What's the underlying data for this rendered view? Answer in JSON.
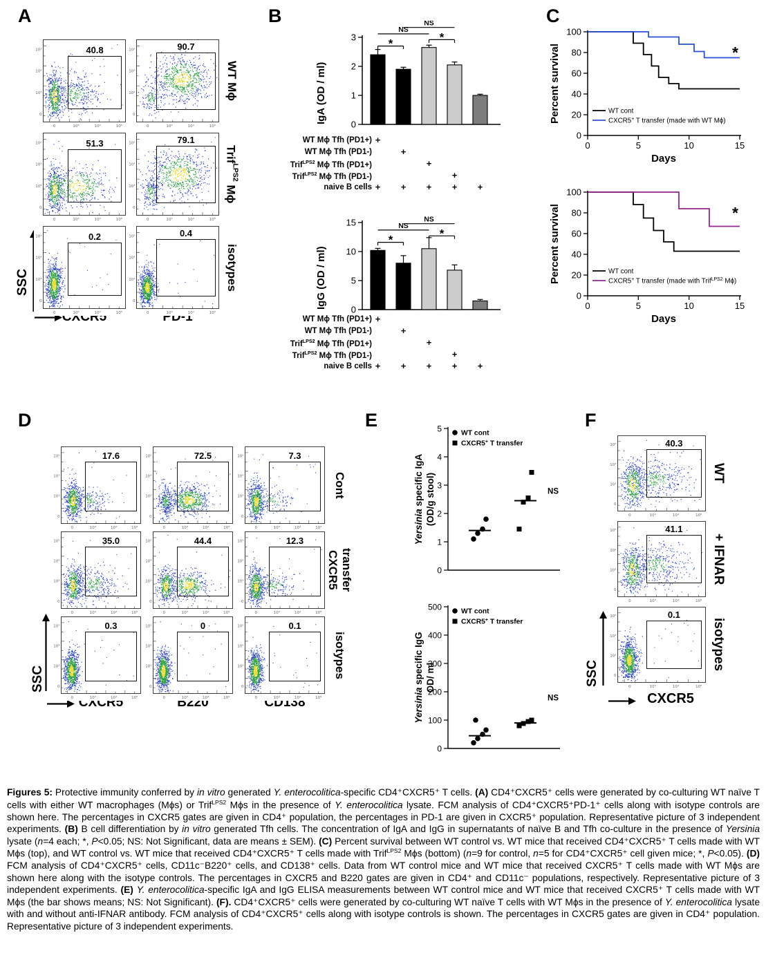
{
  "panels": {
    "A": {
      "label": "A",
      "y_axis": "SSC",
      "cols": [
        "CXCR5",
        "PD-1"
      ],
      "rows": [
        {
          "label": [
            {
              "t": "WT Mϕ"
            }
          ]
        },
        {
          "label": [
            {
              "t": "Trif"
            },
            {
              "sup": true,
              "t": "LPS2"
            },
            {
              "t": " Mϕ"
            }
          ]
        },
        {
          "label": [
            {
              "t": "isotypes"
            }
          ]
        }
      ],
      "plots": [
        {
          "pct": "40.8",
          "pop": "spread",
          "gate": "r"
        },
        {
          "pct": "90.7",
          "pop": "pos",
          "gate": "w"
        },
        {
          "pct": "51.3",
          "pop": "spread2",
          "gate": "r"
        },
        {
          "pct": "79.1",
          "pop": "pos2",
          "gate": "w"
        },
        {
          "pct": "0.2",
          "pop": "neg",
          "gate": "r"
        },
        {
          "pct": "0.4",
          "pop": "neg2",
          "gate": "w"
        }
      ]
    },
    "B": {
      "label": "B",
      "charts": [
        {
          "y_label": "IgA (OD / ml)",
          "ymax": 3,
          "yticks": [
            0,
            1,
            2,
            3
          ],
          "values": [
            2.4,
            1.9,
            2.65,
            2.05,
            1.0
          ],
          "errors": [
            0.18,
            0.07,
            0.08,
            0.1,
            0.04
          ],
          "colors": [
            "#000000",
            "#000000",
            "#cccccc",
            "#cccccc",
            "#7d7d7d"
          ],
          "sig": [
            {
              "label": "*",
              "a": 0,
              "b": 1,
              "y": 2.7
            },
            {
              "label": "*",
              "a": 2,
              "b": 3,
              "y": 2.92
            },
            {
              "label": "NS",
              "a": 0,
              "b": 2,
              "y": 3.12
            },
            {
              "label": "NS",
              "a": 1,
              "b": 3,
              "y": 3.34
            }
          ]
        },
        {
          "y_label": "IgG (OD / ml)",
          "ymax": 15,
          "yticks": [
            0,
            5,
            10,
            15
          ],
          "values": [
            10.2,
            8.0,
            10.5,
            6.8,
            1.5
          ],
          "errors": [
            0.35,
            1.3,
            1.9,
            0.9,
            0.25
          ],
          "colors": [
            "#000000",
            "#000000",
            "#cccccc",
            "#cccccc",
            "#7d7d7d"
          ],
          "sig": [
            {
              "label": "*",
              "a": 0,
              "b": 1,
              "y": 11.6
            },
            {
              "label": "*",
              "a": 2,
              "b": 3,
              "y": 12.7
            },
            {
              "label": "NS",
              "a": 0,
              "b": 2,
              "y": 13.7
            },
            {
              "label": "NS",
              "a": 1,
              "b": 3,
              "y": 14.8
            }
          ]
        }
      ],
      "conditions": [
        [
          {
            "t": "WT Mϕ Tfh (PD1+)"
          }
        ],
        [
          {
            "t": "WT Mϕ Tfh (PD1-)"
          }
        ],
        [
          {
            "t": "Trif"
          },
          {
            "sup": true,
            "t": "LPS2"
          },
          {
            "t": " Mϕ Tfh (PD1+)"
          }
        ],
        [
          {
            "t": "Trif"
          },
          {
            "sup": true,
            "t": "LPS2"
          },
          {
            "t": " Mϕ Tfh (PD1-)"
          }
        ],
        [
          {
            "t": "naive B cells"
          }
        ]
      ],
      "matrix": [
        [
          1,
          0,
          0,
          0,
          0
        ],
        [
          0,
          1,
          0,
          0,
          0
        ],
        [
          0,
          0,
          1,
          0,
          0
        ],
        [
          0,
          0,
          0,
          1,
          0
        ],
        [
          1,
          1,
          1,
          1,
          1
        ]
      ]
    },
    "C": {
      "label": "C",
      "charts": [
        {
          "y_label": "Percent survival",
          "x_label": "Days",
          "xmax": 15,
          "xticks": [
            0,
            5,
            10,
            15
          ],
          "yticks": [
            0,
            20,
            40,
            60,
            80,
            100
          ],
          "annotation": "*",
          "series": [
            {
              "name": [
                {
                  "t": "WT cont"
                }
              ],
              "color": "#000000",
              "drops": [
                [
                  4.5,
                  89
                ],
                [
                  5.5,
                  78
                ],
                [
                  6.3,
                  67
                ],
                [
                  7.0,
                  56
                ],
                [
                  8.0,
                  50
                ],
                [
                  9.0,
                  45
                ]
              ]
            },
            {
              "name": [
                {
                  "t": "CXCR5"
                },
                {
                  "sup": true,
                  "t": "+"
                },
                {
                  "t": " T transfer (made with WT Mϕ)"
                }
              ],
              "color": "#2b4fd8",
              "drops": [
                [
                  6.0,
                  95
                ],
                [
                  9.0,
                  88
                ],
                [
                  10.5,
                  81
                ],
                [
                  11.5,
                  75
                ]
              ]
            }
          ]
        },
        {
          "y_label": "Percent survival",
          "x_label": "Days",
          "xmax": 15,
          "xticks": [
            0,
            5,
            10,
            15
          ],
          "yticks": [
            0,
            20,
            40,
            60,
            80,
            100
          ],
          "annotation": "*",
          "series": [
            {
              "name": [
                {
                  "t": "WT cont"
                }
              ],
              "color": "#000000",
              "drops": [
                [
                  4.5,
                  88
                ],
                [
                  5.5,
                  75
                ],
                [
                  6.5,
                  63
                ],
                [
                  7.5,
                  52
                ],
                [
                  8.5,
                  43
                ]
              ]
            },
            {
              "name": [
                {
                  "t": "CXCR5"
                },
                {
                  "sup": true,
                  "t": "+"
                },
                {
                  "t": " T transfer (made with Trif"
                },
                {
                  "sup": true,
                  "t": "LPS2"
                },
                {
                  "t": " Mϕ)"
                }
              ],
              "color": "#93278f",
              "drops": [
                [
                  9.0,
                  84
                ],
                [
                  12.0,
                  67
                ]
              ]
            }
          ]
        }
      ]
    },
    "D": {
      "label": "D",
      "y_axis": "SSC",
      "cols": [
        "CXCR5",
        "B220",
        "CD138"
      ],
      "rows": [
        {
          "label_lines": [
            [
              {
                "t": "Cont"
              }
            ]
          ]
        },
        {
          "label_lines": [
            [
              {
                "t": "CXCR5"
              }
            ],
            [
              {
                "t": "transfer"
              }
            ]
          ]
        },
        {
          "label_lines": [
            [
              {
                "t": "isotypes"
              }
            ]
          ]
        }
      ],
      "plots": [
        {
          "pct": "17.6",
          "pop": "d17",
          "gate": "r"
        },
        {
          "pct": "72.5",
          "pop": "two",
          "gate": "r"
        },
        {
          "pct": "7.3",
          "pop": "low",
          "gate": "r"
        },
        {
          "pct": "35.0",
          "pop": "mid",
          "gate": "r"
        },
        {
          "pct": "44.4",
          "pop": "two2",
          "gate": "r"
        },
        {
          "pct": "12.3",
          "pop": "low2",
          "gate": "r"
        },
        {
          "pct": "0.3",
          "pop": "neg",
          "gate": "r"
        },
        {
          "pct": "0",
          "pop": "neg",
          "gate": "r"
        },
        {
          "pct": "0.1",
          "pop": "neg",
          "gate": "r"
        }
      ]
    },
    "E": {
      "label": "E",
      "charts": [
        {
          "y_label_lines": [
            [
              {
                "i": true,
                "t": "Yersinia"
              },
              {
                "t": " specific IgA"
              }
            ],
            [
              {
                "t": "(OD/g stool)"
              }
            ]
          ],
          "ymax": 5,
          "yticks": [
            0,
            1,
            2,
            3,
            4,
            5
          ],
          "legend": [
            {
              "marker": "circle",
              "name": [
                {
                  "t": "WT cont"
                }
              ]
            },
            {
              "marker": "square",
              "name": [
                {
                  "t": "CXCR5"
                },
                {
                  "sup": true,
                  "t": "+"
                },
                {
                  "t": " T transfer"
                }
              ]
            }
          ],
          "groups": [
            {
              "marker": "circle",
              "values": [
                1.1,
                1.3,
                1.45,
                1.8
              ],
              "mean": 1.4
            },
            {
              "marker": "square",
              "values": [
                1.45,
                2.4,
                2.55,
                3.45
              ],
              "mean": 2.45
            }
          ],
          "ns_label": "NS",
          "ns_at": 2.7
        },
        {
          "y_label_lines": [
            [
              {
                "i": true,
                "t": "Yersinia"
              },
              {
                "t": " specific IgG"
              }
            ],
            [
              {
                "t": "OD/ ml"
              }
            ]
          ],
          "ymax": 500,
          "yticks": [
            0,
            100,
            200,
            300,
            400,
            500
          ],
          "legend": [
            {
              "marker": "circle",
              "name": [
                {
                  "t": "WT cont"
                }
              ]
            },
            {
              "marker": "square",
              "name": [
                {
                  "t": "CXCR5"
                },
                {
                  "sup": true,
                  "t": "+"
                },
                {
                  "t": " T transfer"
                }
              ]
            }
          ],
          "groups": [
            {
              "marker": "circle",
              "values": [
                20,
                35,
                50,
                65,
                100
              ],
              "mean": 45
            },
            {
              "marker": "square",
              "values": [
                80,
                88,
                95,
                100
              ],
              "mean": 90
            }
          ],
          "ns_label": "NS",
          "ns_at": 170
        }
      ]
    },
    "F": {
      "label": "F",
      "y_axis": "SSC",
      "x_axis": "CXCR5",
      "rows": [
        {
          "label": [
            {
              "t": "WT"
            }
          ]
        },
        {
          "label": [
            {
              "t": "+ IFNAR"
            }
          ]
        },
        {
          "label": [
            {
              "t": "isotypes"
            }
          ]
        }
      ],
      "plots": [
        {
          "pct": "40.3",
          "pop": "big",
          "gate": "f"
        },
        {
          "pct": "41.1",
          "pop": "big",
          "gate": "f"
        },
        {
          "pct": "0.1",
          "pop": "neg",
          "gate": "f"
        }
      ]
    }
  },
  "caption": [
    {
      "b": true,
      "t": "Figures 5:"
    },
    {
      "t": " Protective immunity conferred by "
    },
    {
      "i": true,
      "t": "in vitro"
    },
    {
      "t": " generated "
    },
    {
      "i": true,
      "t": "Y. enterocolitica"
    },
    {
      "t": "-specific CD4⁺CXCR5⁺ T cells. "
    },
    {
      "b": true,
      "t": "(A)"
    },
    {
      "t": " CD4⁺CXCR5⁺ cells were generated by co-culturing WT naïve T cells with either WT macrophages (Mϕs) or Trif"
    },
    {
      "sup": true,
      "t": "LPS2"
    },
    {
      "t": " Mϕs in the presence of "
    },
    {
      "i": true,
      "t": "Y. enterocolitica"
    },
    {
      "t": " lysate. FCM analysis of CD4⁺CXCR5⁺PD-1⁺ cells along with isotype controls are shown here. The percentages in CXCR5 gates are given in CD4⁺ population, the percentages in PD-1 are given in CXCR5⁺ population. Representative picture of 3 independent experiments. "
    },
    {
      "b": true,
      "t": "(B)"
    },
    {
      "t": " B cell differentiation by "
    },
    {
      "i": true,
      "t": "in vitro"
    },
    {
      "t": " generated Tfh cells. The concentration of IgA and IgG in supernatants of naïve B and Tfh co-culture in the presence of "
    },
    {
      "i": true,
      "t": "Yersinia"
    },
    {
      "t": " lysate ("
    },
    {
      "i": true,
      "t": "n"
    },
    {
      "t": "=4 each; *, "
    },
    {
      "i": true,
      "t": "P"
    },
    {
      "t": "<0.05; NS: Not Significant, data are means ± SEM). "
    },
    {
      "b": true,
      "t": "(C)"
    },
    {
      "t": " Percent survival between WT control vs. WT mice that received CD4⁺CXCR5⁺ T cells made with WT Mϕs (top), and WT control vs. WT mice that received CD4⁺CXCR5⁺ T cells made with Trif"
    },
    {
      "sup": true,
      "t": "LPS2"
    },
    {
      "t": " Mϕs (bottom) ("
    },
    {
      "i": true,
      "t": "n"
    },
    {
      "t": "=9 for control, "
    },
    {
      "i": true,
      "t": "n"
    },
    {
      "t": "=5 for CD4⁺CXCR5⁺ cell given mice; *, "
    },
    {
      "i": true,
      "t": "P"
    },
    {
      "t": "<0.05). "
    },
    {
      "b": true,
      "t": "(D)"
    },
    {
      "t": " FCM analysis of CD4⁺CXCR5⁺ cells, CD11c⁻B220⁺ cells, and CD138⁺ cells. Data from WT control mice and WT mice that received CXCR5⁺ T cells made with WT Mϕs are shown here along with the isotype controls. The percentages in CXCR5 and B220 gates are given in CD4⁺ and CD11c⁻ populations, respectively. Representative picture of 3 independent experiments. "
    },
    {
      "b": true,
      "t": "(E)"
    },
    {
      "t": " "
    },
    {
      "i": true,
      "t": "Y. enterocolitica"
    },
    {
      "t": "-specific IgA and IgG ELISA measurements between WT control mice and WT mice that received CXCR5⁺ T cells made with WT Mϕs (the bar shows means; NS: Not Significant). "
    },
    {
      "b": true,
      "t": "(F)."
    },
    {
      "t": " CD4⁺CXCR5⁺ cells were generated by co-culturing WT naïve T cells with WT Mϕs in the presence of "
    },
    {
      "i": true,
      "t": "Y. enterocolitica"
    },
    {
      "t": " lysate with and without anti-IFNAR antibody. FCM analysis of CD4⁺CXCR5⁺ cells along with isotype controls is shown. The percentages in CXCR5 gates are given in CD4⁺ population. Representative picture of 3 independent experiments."
    }
  ]
}
